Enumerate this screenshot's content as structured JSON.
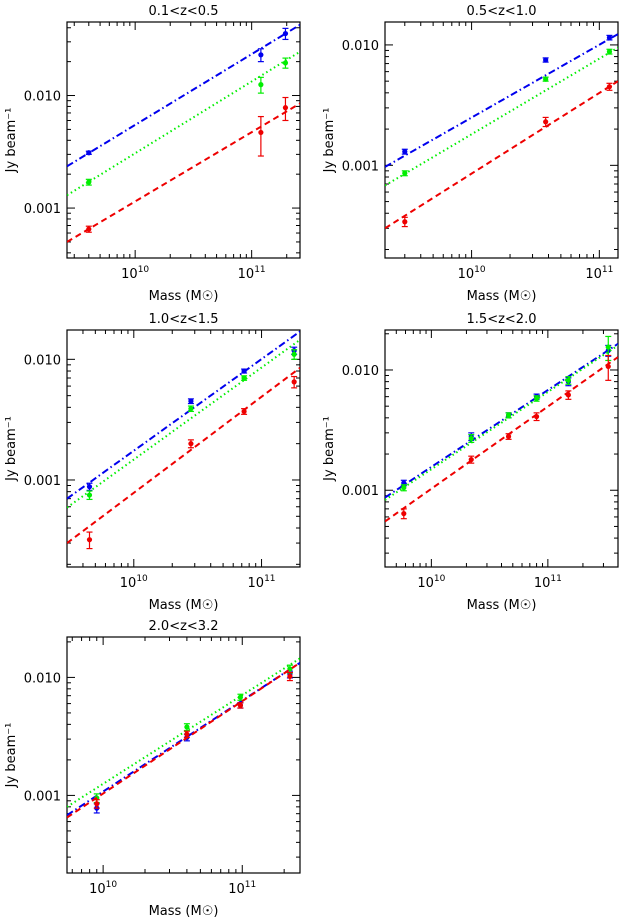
{
  "chart_data": [
    {
      "type": "scatter",
      "title": "0.1<z<0.5",
      "xlabel": "Mass (M☉)",
      "ylabel": "Jy beam⁻¹",
      "xscale": "log",
      "yscale": "log",
      "xlim": [
        2600000000.0,
        260000000000.0
      ],
      "ylim": [
        0.00036,
        0.045
      ],
      "yticks": [
        {
          "v": 0.001,
          "label": "0.001"
        },
        {
          "v": 0.01,
          "label": "0.010"
        }
      ],
      "xticks": [
        {
          "v": 10000000000.0,
          "base": "10",
          "exp": "10"
        },
        {
          "v": 100000000000.0,
          "base": "10",
          "exp": "11"
        }
      ],
      "series": [
        {
          "color": "#0000ee",
          "line": "dashdot",
          "fit": [
            [
              2600000000.0,
              0.00235
            ],
            [
              260000000000.0,
              0.0425
            ]
          ],
          "points": [
            [
              4000000000.0,
              0.0031,
              0.0001
            ],
            [
              120000000000.0,
              0.023,
              0.003
            ],
            [
              195000000000.0,
              0.0355,
              0.004
            ]
          ]
        },
        {
          "color": "#00ee00",
          "line": "dotted",
          "fit": [
            [
              2600000000.0,
              0.0013
            ],
            [
              260000000000.0,
              0.0245
            ]
          ],
          "points": [
            [
              4000000000.0,
              0.0017,
              0.0001
            ],
            [
              120000000000.0,
              0.0125,
              0.002
            ],
            [
              195000000000.0,
              0.0195,
              0.002
            ]
          ]
        },
        {
          "color": "#ee0000",
          "line": "dashed",
          "fit": [
            [
              2600000000.0,
              0.0005
            ],
            [
              260000000000.0,
              0.0085
            ]
          ],
          "points": [
            [
              4000000000.0,
              0.00065,
              4e-05
            ],
            [
              120000000000.0,
              0.0047,
              0.0018
            ],
            [
              195000000000.0,
              0.0078,
              0.0018
            ]
          ]
        }
      ]
    },
    {
      "type": "scatter",
      "title": "0.5<z<1.0",
      "xlabel": "Mass (M☉)",
      "ylabel": "Jy beam⁻¹",
      "xscale": "log",
      "yscale": "log",
      "xlim": [
        2100000000.0,
        140000000000.0
      ],
      "ylim": [
        0.00017,
        0.0155
      ],
      "yticks": [
        {
          "v": 0.001,
          "label": "0.001"
        },
        {
          "v": 0.01,
          "label": "0.010"
        }
      ],
      "xticks": [
        {
          "v": 10000000000.0,
          "base": "10",
          "exp": "10"
        },
        {
          "v": 100000000000.0,
          "base": "10",
          "exp": "11"
        }
      ],
      "series": [
        {
          "color": "#0000ee",
          "line": "dashdot",
          "fit": [
            [
              2100000000.0,
              0.00097
            ],
            [
              140000000000.0,
              0.0123
            ]
          ],
          "points": [
            [
              3000000000.0,
              0.0013,
              6e-05
            ],
            [
              38000000000.0,
              0.0075,
              0.0003
            ],
            [
              120000000000.0,
              0.0115,
              0.0005
            ]
          ]
        },
        {
          "color": "#00ee00",
          "line": "dotted",
          "fit": [
            [
              2100000000.0,
              0.00068
            ],
            [
              140000000000.0,
              0.0095
            ]
          ],
          "points": [
            [
              3000000000.0,
              0.00086,
              4e-05
            ],
            [
              38000000000.0,
              0.0052,
              0.0002
            ],
            [
              120000000000.0,
              0.0088,
              0.0004
            ]
          ]
        },
        {
          "color": "#ee0000",
          "line": "dashed",
          "fit": [
            [
              2100000000.0,
              0.0003
            ],
            [
              140000000000.0,
              0.005
            ]
          ],
          "points": [
            [
              3000000000.0,
              0.00034,
              3e-05
            ],
            [
              38000000000.0,
              0.0023,
              0.0002
            ],
            [
              120000000000.0,
              0.0045,
              0.0003
            ]
          ]
        }
      ]
    },
    {
      "type": "scatter",
      "title": "1.0<z<1.5",
      "xlabel": "Mass (M☉)",
      "ylabel": "Jy beam⁻¹",
      "xscale": "log",
      "yscale": "log",
      "xlim": [
        3000000000.0,
        200000000000.0
      ],
      "ylim": [
        0.00019,
        0.0175
      ],
      "yticks": [
        {
          "v": 0.001,
          "label": "0.001"
        },
        {
          "v": 0.01,
          "label": "0.010"
        }
      ],
      "xticks": [
        {
          "v": 10000000000.0,
          "base": "10",
          "exp": "10"
        },
        {
          "v": 100000000000.0,
          "base": "10",
          "exp": "11"
        }
      ],
      "series": [
        {
          "color": "#0000ee",
          "line": "dashdot",
          "fit": [
            [
              3000000000.0,
              0.0007
            ],
            [
              200000000000.0,
              0.017
            ]
          ],
          "points": [
            [
              4500000000.0,
              0.00088,
              6e-05
            ],
            [
              28000000000.0,
              0.0045,
              0.0002
            ],
            [
              73000000000.0,
              0.008,
              0.0003
            ],
            [
              180000000000.0,
              0.0118,
              0.0008
            ]
          ]
        },
        {
          "color": "#00ee00",
          "line": "dotted",
          "fit": [
            [
              3000000000.0,
              0.00059
            ],
            [
              200000000000.0,
              0.0145
            ]
          ],
          "points": [
            [
              4500000000.0,
              0.00075,
              6e-05
            ],
            [
              28000000000.0,
              0.0039,
              0.0002
            ],
            [
              73000000000.0,
              0.007,
              0.0003
            ],
            [
              180000000000.0,
              0.011,
              0.001
            ]
          ]
        },
        {
          "color": "#ee0000",
          "line": "dashed",
          "fit": [
            [
              3000000000.0,
              0.0003
            ],
            [
              200000000000.0,
              0.0085
            ]
          ],
          "points": [
            [
              4500000000.0,
              0.00032,
              5e-05
            ],
            [
              28000000000.0,
              0.002,
              0.00015
            ],
            [
              73000000000.0,
              0.0037,
              0.0002
            ],
            [
              180000000000.0,
              0.0065,
              0.0007
            ]
          ]
        }
      ]
    },
    {
      "type": "scatter",
      "title": "1.5<z<2.0",
      "xlabel": "Mass (M☉)",
      "ylabel": "Jy beam⁻¹",
      "xscale": "log",
      "yscale": "log",
      "xlim": [
        4000000000.0,
        400000000000.0
      ],
      "ylim": [
        0.00023,
        0.0215
      ],
      "yticks": [
        {
          "v": 0.001,
          "label": "0.001"
        },
        {
          "v": 0.01,
          "label": "0.010"
        }
      ],
      "xticks": [
        {
          "v": 10000000000.0,
          "base": "10",
          "exp": "10"
        },
        {
          "v": 100000000000.0,
          "base": "10",
          "exp": "11"
        }
      ],
      "series": [
        {
          "color": "#0000ee",
          "line": "dashdot",
          "fit": [
            [
              4000000000.0,
              0.00087
            ],
            [
              400000000000.0,
              0.0165
            ]
          ],
          "points": [
            [
              5800000000.0,
              0.00115,
              6e-05
            ],
            [
              22000000000.0,
              0.0028,
              0.0002
            ],
            [
              46000000000.0,
              0.0042,
              0.0002
            ],
            [
              80000000000.0,
              0.006,
              0.0003
            ],
            [
              150000000000.0,
              0.008,
              0.0006
            ],
            [
              330000000000.0,
              0.0145,
              0.0015
            ]
          ]
        },
        {
          "color": "#00ee00",
          "line": "dotted",
          "fit": [
            [
              4000000000.0,
              0.00083
            ],
            [
              400000000000.0,
              0.016
            ]
          ],
          "points": [
            [
              5800000000.0,
              0.00105,
              6e-05
            ],
            [
              22000000000.0,
              0.0027,
              0.0002
            ],
            [
              46000000000.0,
              0.0042,
              0.0002
            ],
            [
              80000000000.0,
              0.0058,
              0.0003
            ],
            [
              150000000000.0,
              0.0082,
              0.0006
            ],
            [
              330000000000.0,
              0.0155,
              0.0035
            ]
          ]
        },
        {
          "color": "#ee0000",
          "line": "dashed",
          "fit": [
            [
              4000000000.0,
              0.00055
            ],
            [
              400000000000.0,
              0.0128
            ]
          ],
          "points": [
            [
              5800000000.0,
              0.00064,
              6e-05
            ],
            [
              22000000000.0,
              0.0018,
              0.00012
            ],
            [
              46000000000.0,
              0.0028,
              0.00015
            ],
            [
              80000000000.0,
              0.0041,
              0.0003
            ],
            [
              150000000000.0,
              0.0062,
              0.0005
            ],
            [
              330000000000.0,
              0.0107,
              0.0025
            ]
          ]
        }
      ]
    },
    {
      "type": "scatter",
      "title": "2.0<z<3.2",
      "xlabel": "Mass (M☉)",
      "ylabel": "Jy beam⁻¹",
      "xscale": "log",
      "yscale": "log",
      "xlim": [
        5500000000.0,
        260000000000.0
      ],
      "ylim": [
        0.00022,
        0.022
      ],
      "yticks": [
        {
          "v": 0.001,
          "label": "0.001"
        },
        {
          "v": 0.01,
          "label": "0.010"
        }
      ],
      "xticks": [
        {
          "v": 10000000000.0,
          "base": "10",
          "exp": "10"
        },
        {
          "v": 100000000000.0,
          "base": "10",
          "exp": "11"
        }
      ],
      "series": [
        {
          "color": "#0000ee",
          "line": "dashdot",
          "fit": [
            [
              5500000000.0,
              0.00068
            ],
            [
              260000000000.0,
              0.0133
            ]
          ],
          "points": [
            [
              9000000000.0,
              0.00078,
              7e-05
            ],
            [
              40000000000.0,
              0.0031,
              0.0002
            ],
            [
              97000000000.0,
              0.0058,
              0.0003
            ],
            [
              220000000000.0,
              0.0106,
              0.0007
            ]
          ]
        },
        {
          "color": "#00ee00",
          "line": "dotted",
          "fit": [
            [
              5500000000.0,
              0.0008
            ],
            [
              260000000000.0,
              0.0145
            ]
          ],
          "points": [
            [
              9000000000.0,
              0.00095,
              8e-05
            ],
            [
              40000000000.0,
              0.0038,
              0.00025
            ],
            [
              97000000000.0,
              0.0068,
              0.0004
            ],
            [
              220000000000.0,
              0.0118,
              0.0009
            ]
          ]
        },
        {
          "color": "#ee0000",
          "line": "dashed",
          "fit": [
            [
              5500000000.0,
              0.00065
            ],
            [
              260000000000.0,
              0.0133
            ]
          ],
          "points": [
            [
              9000000000.0,
              0.00085,
              7e-05
            ],
            [
              40000000000.0,
              0.0033,
              0.0002
            ],
            [
              97000000000.0,
              0.0058,
              0.0003
            ],
            [
              220000000000.0,
              0.0102,
              0.0008
            ]
          ]
        }
      ]
    }
  ]
}
